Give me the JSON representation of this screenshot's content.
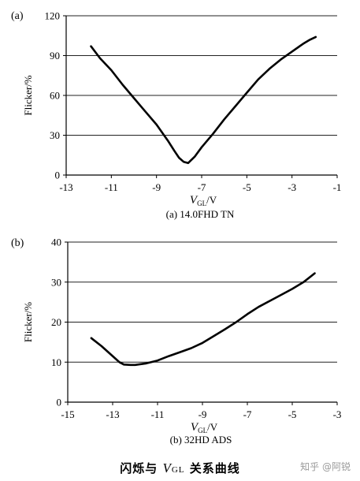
{
  "chart_data": [
    {
      "type": "line",
      "panel_label": "(a)",
      "caption": "(a) 14.0FHD TN",
      "ylabel": "Flicker/%",
      "xlabel": {
        "main": "V",
        "sub": "GL",
        "unit": "/V"
      },
      "xlim": [
        -13,
        -1
      ],
      "ylim": [
        0,
        120
      ],
      "xticks": [
        -13,
        -11,
        -9,
        -7,
        -5,
        -3,
        -1
      ],
      "yticks": [
        0,
        30,
        60,
        90,
        120
      ],
      "grid": "horizontal",
      "series": [
        {
          "x": [
            -11.9,
            -11.5,
            -11.0,
            -10.5,
            -10.0,
            -9.5,
            -9.0,
            -8.5,
            -8.2,
            -8.0,
            -7.8,
            -7.6,
            -7.3,
            -7.0,
            -6.5,
            -6.0,
            -5.5,
            -5.0,
            -4.5,
            -4.0,
            -3.5,
            -3.0,
            -2.5,
            -2.2,
            -1.95
          ],
          "y": [
            97,
            88,
            79,
            68,
            58,
            48,
            38,
            26,
            18,
            13,
            10,
            9,
            14,
            21,
            31,
            42,
            52,
            62,
            72,
            80,
            87,
            93,
            99,
            102,
            104
          ]
        }
      ]
    },
    {
      "type": "line",
      "panel_label": "(b)",
      "caption": "(b) 32HD ADS",
      "ylabel": "Flicker/%",
      "xlabel": {
        "main": "V",
        "sub": "GL",
        "unit": "/V"
      },
      "xlim": [
        -15,
        -3
      ],
      "ylim": [
        0,
        40
      ],
      "xticks": [
        -15,
        -13,
        -11,
        -9,
        -7,
        -5,
        -3
      ],
      "yticks": [
        0,
        10,
        20,
        30,
        40
      ],
      "grid": "horizontal",
      "series": [
        {
          "x": [
            -13.95,
            -13.5,
            -13.0,
            -12.7,
            -12.5,
            -12.2,
            -12.0,
            -11.5,
            -11.0,
            -10.5,
            -10.0,
            -9.5,
            -9.0,
            -8.5,
            -8.0,
            -7.5,
            -7.0,
            -6.5,
            -6.0,
            -5.5,
            -5.0,
            -4.5,
            -4.0
          ],
          "y": [
            16,
            14,
            11.5,
            10,
            9.4,
            9.3,
            9.3,
            9.7,
            10.4,
            11.5,
            12.5,
            13.5,
            14.8,
            16.5,
            18.2,
            20,
            22,
            23.8,
            25.3,
            26.8,
            28.3,
            30,
            32.2
          ]
        }
      ]
    }
  ],
  "footer": {
    "title_prefix": "闪烁与",
    "title_v": "V",
    "title_sub": "GL",
    "title_suffix": "关系曲线",
    "watermark": "知乎 @阿锐"
  }
}
